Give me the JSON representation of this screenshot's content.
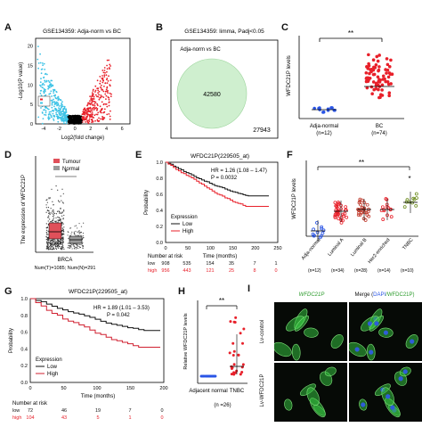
{
  "panels": {
    "A": {
      "letter": "A",
      "title": "GSE134359: Adja-norm vs BC",
      "xlabel": "Log2(fold change)",
      "ylabel": "-Log10(P value)",
      "xticks": [
        "-4",
        "-2",
        "0",
        "2",
        "4",
        "6"
      ],
      "yticks": [
        "0",
        "5",
        "10",
        "15",
        "20"
      ]
    },
    "B": {
      "letter": "B",
      "title": "GSE134359: limma, Padj<0.05",
      "subtitle": "Adja-norm vs BC",
      "inner": "42580",
      "outer": "27943"
    },
    "C": {
      "letter": "C",
      "ylabel": "WFDC21P levels",
      "sig": "**",
      "groups": [
        "Adja-normal",
        "BC"
      ],
      "counts": [
        "(n=12)",
        "(n=74)"
      ]
    },
    "D": {
      "letter": "D",
      "legend": [
        "Tumour",
        "Normal"
      ],
      "ylabel": "The expression of WFDC21P",
      "sig": "*",
      "label": "BRCA",
      "counts": "Num(T)=1085; Num(N)=291"
    },
    "E": {
      "letter": "E",
      "title": "WFDC21P(229505_at)",
      "hr": "HR = 1.26 (1.08 – 1.47)",
      "p": "P = 0.0032",
      "ylabel": "Probability",
      "legend_title": "Expression",
      "legend": [
        "Low",
        "High"
      ],
      "xlabel": "Time (months)",
      "risk_title": "Number at risk",
      "xticks": [
        "0",
        "50",
        "100",
        "150",
        "200",
        "250"
      ],
      "yticks": [
        "0.0",
        "0.2",
        "0.4",
        "0.6",
        "0.8",
        "1.0"
      ],
      "risk": {
        "low": [
          "low",
          "908",
          "535",
          "154",
          "35",
          "7",
          "1"
        ],
        "high": [
          "high",
          "956",
          "443",
          "121",
          "25",
          "8",
          "0"
        ]
      }
    },
    "F": {
      "letter": "F",
      "ylabel": "WFDC21P levels",
      "sig": "**",
      "sig2": "*",
      "groups": [
        "Adja-normal",
        "Luminal A",
        "Luminal B",
        "Her2-enriched",
        "TNBC"
      ],
      "counts": [
        "(n=12)",
        "(n=34)",
        "(n=28)",
        "(n=14)",
        "(n=10)"
      ]
    },
    "G": {
      "letter": "G",
      "title": "WFDC21P(229505_at)",
      "hr": "HR = 1.89 (1.01 – 3.53)",
      "p": "P = 0.042",
      "ylabel": "Probability",
      "legend_title": "Expression",
      "legend": [
        "Low",
        "High"
      ],
      "xlabel": "Time (months)",
      "risk_title": "Number at risk",
      "xticks": [
        "0",
        "50",
        "100",
        "150",
        "200"
      ],
      "yticks": [
        "0.0",
        "0.2",
        "0.4",
        "0.6",
        "0.8",
        "1.0"
      ],
      "risk": {
        "low": [
          "low",
          "72",
          "46",
          "19",
          "7",
          "0"
        ],
        "high": [
          "high",
          "104",
          "43",
          "5",
          "1",
          "0"
        ]
      }
    },
    "H": {
      "letter": "H",
      "ylabel": "Relative WFDC21P levels",
      "sig": "**",
      "groups": [
        "Adjacent normal",
        "TNBC"
      ],
      "counts": "(n =26)"
    },
    "I": {
      "letter": "I",
      "col1": "WFDC21P",
      "col2_prefix": "Merge (",
      "col2_dapi": "DAPI",
      "col2_suffix": "/WFDC21P)",
      "row1": "Lv-control",
      "row2": "Lv-WFDC21P"
    }
  },
  "colors": {
    "red": "#e8202a",
    "cyan": "#3ec3e6",
    "blue": "#2a55e6",
    "green": "#cfefcf",
    "tumour": "#e0505a",
    "normal": "#9a9a9a",
    "micro_bg": "#060a06",
    "cell": "#35c040"
  }
}
